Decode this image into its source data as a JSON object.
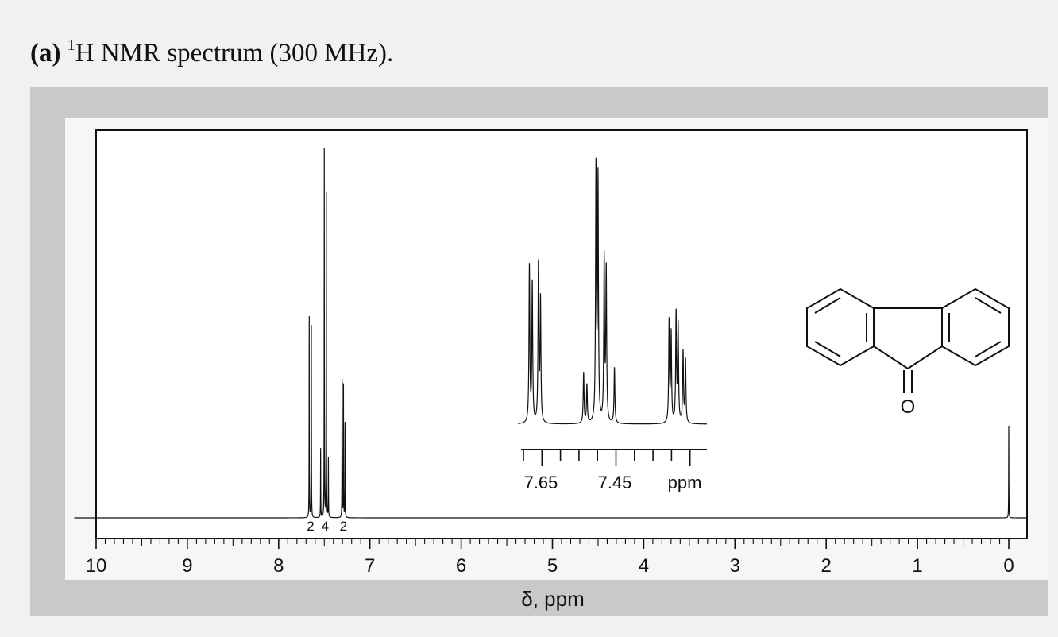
{
  "caption": {
    "part": "(a)",
    "isotope_mass": "1",
    "text": "H NMR spectrum (300 MHz)."
  },
  "colors": {
    "background": "#f1f1f0",
    "frame": "#c9c9c7",
    "panel": "#f6f6f4",
    "ink": "#111111"
  },
  "chart_data": {
    "type": "line",
    "xlabel": "δ, ppm",
    "xlim": [
      10,
      0
    ],
    "x_reversed": true,
    "grid": false,
    "x_ticks": [
      10,
      9,
      8,
      7,
      6,
      5,
      4,
      3,
      2,
      1,
      0
    ],
    "tick_labels": [
      "10",
      "9",
      "8",
      "7",
      "6",
      "5",
      "4",
      "3",
      "2",
      "1",
      "0"
    ],
    "main_peaks": [
      {
        "ppm": 7.665,
        "height": 0.89
      },
      {
        "ppm": 7.642,
        "height": 0.9
      },
      {
        "ppm": 7.54,
        "height": 0.3
      },
      {
        "ppm": 7.5,
        "height": 1.6
      },
      {
        "ppm": 7.478,
        "height": 1.52
      },
      {
        "ppm": 7.455,
        "height": 0.26
      },
      {
        "ppm": 7.305,
        "height": 0.61
      },
      {
        "ppm": 7.29,
        "height": 0.62
      },
      {
        "ppm": 7.273,
        "height": 0.42
      },
      {
        "ppm": 0.0,
        "height": 0.4
      }
    ],
    "integrations": [
      {
        "ppm": 7.65,
        "label": "2"
      },
      {
        "ppm": 7.49,
        "label": "4"
      },
      {
        "ppm": 7.29,
        "label": "2"
      }
    ],
    "inset": {
      "xlabel": "ppm",
      "tick_labels": [
        "7.65",
        "7.45"
      ],
      "xlim": [
        7.69,
        7.23
      ],
      "peaks": [
        {
          "ppm": 7.662,
          "height": 0.62
        },
        {
          "ppm": 7.655,
          "height": 0.55
        },
        {
          "ppm": 7.64,
          "height": 0.62
        },
        {
          "ppm": 7.635,
          "height": 0.48
        },
        {
          "ppm": 7.53,
          "height": 0.2
        },
        {
          "ppm": 7.522,
          "height": 0.15
        },
        {
          "ppm": 7.5,
          "height": 1.0
        },
        {
          "ppm": 7.495,
          "height": 0.95
        },
        {
          "ppm": 7.48,
          "height": 0.64
        },
        {
          "ppm": 7.475,
          "height": 0.6
        },
        {
          "ppm": 7.455,
          "height": 0.22
        },
        {
          "ppm": 7.322,
          "height": 0.4
        },
        {
          "ppm": 7.317,
          "height": 0.35
        },
        {
          "ppm": 7.305,
          "height": 0.43
        },
        {
          "ppm": 7.3,
          "height": 0.38
        },
        {
          "ppm": 7.288,
          "height": 0.28
        },
        {
          "ppm": 7.282,
          "height": 0.25
        }
      ]
    },
    "structure": {
      "name": "fluorenone",
      "atom_label": "O"
    }
  }
}
